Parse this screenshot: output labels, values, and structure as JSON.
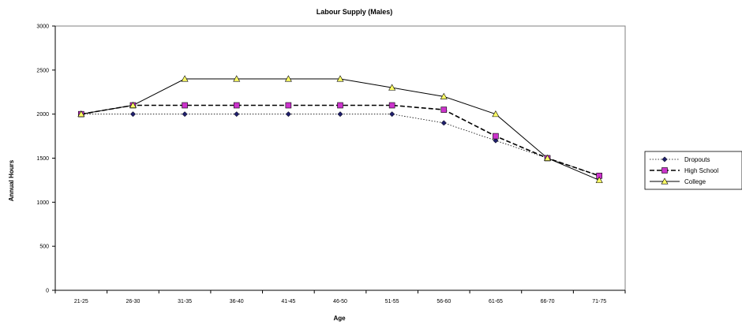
{
  "chart_data": {
    "type": "line",
    "title": "Labour Supply (Males)",
    "xlabel": "Age",
    "ylabel": "Annual Hours",
    "categories": [
      "21-25",
      "26-30",
      "31-35",
      "36-40",
      "41-45",
      "46-50",
      "51-55",
      "56-60",
      "61-65",
      "66-70",
      "71-75"
    ],
    "ylim": [
      0,
      3000
    ],
    "yticks": [
      0,
      500,
      1000,
      1500,
      2000,
      2500,
      3000
    ],
    "grid": false,
    "legend_position": "right",
    "series": [
      {
        "name": "Dropouts",
        "values": [
          2000,
          2000,
          2000,
          2000,
          2000,
          2000,
          2000,
          1900,
          1700,
          1500,
          1300
        ],
        "color": "#1f1f6b",
        "marker": "diamond",
        "dash": "dotted"
      },
      {
        "name": "High School",
        "values": [
          2000,
          2100,
          2100,
          2100,
          2100,
          2100,
          2100,
          2050,
          1750,
          1500,
          1300
        ],
        "color": "#cc33cc",
        "marker": "square",
        "dash": "dashed"
      },
      {
        "name": "College",
        "values": [
          2000,
          2100,
          2400,
          2400,
          2400,
          2400,
          2300,
          2200,
          2000,
          1500,
          1250
        ],
        "color": "#ffff66",
        "marker": "triangle",
        "dash": "solid"
      }
    ]
  }
}
